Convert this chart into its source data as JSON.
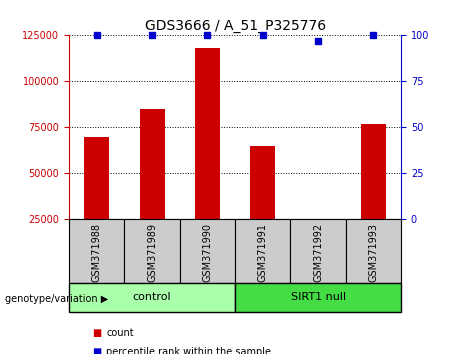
{
  "title": "GDS3666 / A_51_P325776",
  "samples": [
    "GSM371988",
    "GSM371989",
    "GSM371990",
    "GSM371991",
    "GSM371992",
    "GSM371993"
  ],
  "counts": [
    70000,
    85000,
    118000,
    65000,
    22000,
    77000
  ],
  "percentile_ranks": [
    100,
    100,
    100,
    100,
    97,
    100
  ],
  "ylim_left": [
    25000,
    125000
  ],
  "ylim_right": [
    0,
    100
  ],
  "yticks_left": [
    25000,
    50000,
    75000,
    100000,
    125000
  ],
  "yticks_right": [
    0,
    25,
    50,
    75,
    100
  ],
  "bar_color": "#cc0000",
  "dot_color": "#0000cc",
  "groups": [
    {
      "label": "control",
      "start": 0,
      "end": 2,
      "color": "#aaffaa"
    },
    {
      "label": "SIRT1 null",
      "start": 3,
      "end": 5,
      "color": "#44dd44"
    }
  ],
  "bar_left_color": "#cc0000",
  "axis_right_color": "#0000cc",
  "group_label": "genotype/variation",
  "legend_count_label": "count",
  "legend_pct_label": "percentile rank within the sample",
  "plot_bg_color": "#ffffff",
  "sample_box_color": "#cccccc",
  "title_fontsize": 10,
  "tick_fontsize": 7,
  "label_fontsize": 7.5
}
